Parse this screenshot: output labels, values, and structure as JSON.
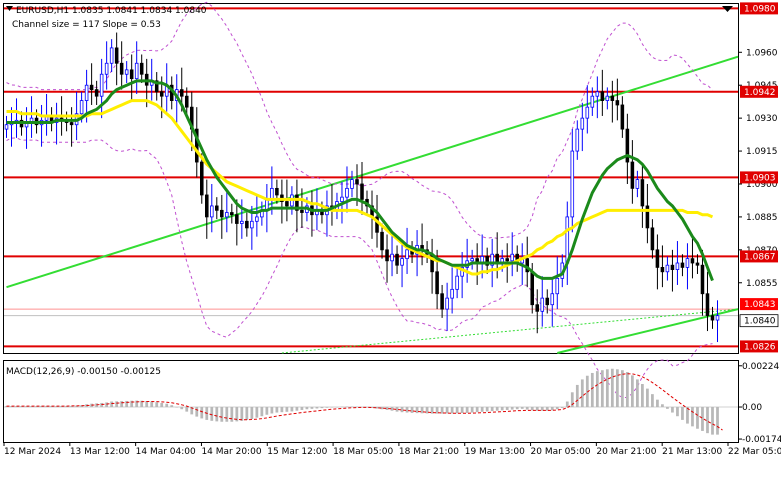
{
  "header": {
    "title": "EURUSD,H1  1.0835 1.0841 1.0834 1.0840",
    "subtitle": "Channel size = 117 Slope = 0.53"
  },
  "macd": {
    "label": "MACD(12,26,9) -0.00150 -0.00125",
    "ticks": [
      {
        "value": 0.00224,
        "label": "0.00224"
      },
      {
        "value": 0.0,
        "label": "0.00"
      },
      {
        "value": -0.00174,
        "label": "-0.00174"
      }
    ],
    "ylim": [
      -0.0019,
      0.0025
    ]
  },
  "colors": {
    "up": "#0000ff",
    "down": "#000000",
    "level": "#e00000",
    "ema_fast": "#1b8a1b",
    "ema_slow": "#ffee00",
    "channel": "#33dd33",
    "bands": "#c050d0",
    "price_tag": "#ff0000"
  },
  "chart_data": {
    "type": "candlestick",
    "symbol": "EURUSD",
    "timeframe": "H1",
    "ylim": [
      1.0823,
      1.0982
    ],
    "x_tick_labels": [
      "12 Mar 2024",
      "13 Mar 12:00",
      "14 Mar 04:00",
      "14 Mar 20:00",
      "15 Mar 12:00",
      "18 Mar 05:00",
      "18 Mar 21:00",
      "19 Mar 13:00",
      "20 Mar 05:00",
      "20 Mar 21:00",
      "21 Mar 13:00",
      "22 Mar 05:00"
    ],
    "y_ticks": [
      {
        "value": 1.096,
        "label": "1.0960"
      },
      {
        "value": 1.0945,
        "label": "1.0945"
      },
      {
        "value": 1.093,
        "label": "1.0930"
      },
      {
        "value": 1.0915,
        "label": "1.0915"
      },
      {
        "value": 1.09,
        "label": "1.0900"
      },
      {
        "value": 1.0885,
        "label": "1.0885"
      },
      {
        "value": 1.087,
        "label": "1.0870"
      },
      {
        "value": 1.0855,
        "label": "1.0855"
      }
    ],
    "levels": [
      {
        "value": 1.098,
        "label": "1.0980"
      },
      {
        "value": 1.0942,
        "label": "1.0942"
      },
      {
        "value": 1.0903,
        "label": "1.0903"
      },
      {
        "value": 1.0867,
        "label": "1.0867"
      },
      {
        "value": 1.0826,
        "label": "1.0826"
      }
    ],
    "price_tags": [
      {
        "value": 1.0843,
        "label": "1.0843"
      },
      {
        "value": 1.084,
        "label": "1.0840"
      }
    ],
    "close": [
      1.0927,
      1.0928,
      1.0929,
      1.0926,
      1.0928,
      1.093,
      1.0927,
      1.0929,
      1.0931,
      1.0928,
      1.093,
      1.0929,
      1.0928,
      1.0927,
      1.0932,
      1.0938,
      1.0945,
      1.0943,
      1.094,
      1.095,
      1.0955,
      1.0962,
      1.0955,
      1.095,
      1.0952,
      1.0948,
      1.0955,
      1.095,
      1.0945,
      1.0947,
      1.0942,
      1.094,
      1.0945,
      1.0938,
      1.0943,
      1.094,
      1.0935,
      1.0925,
      1.091,
      1.0895,
      1.0885,
      1.089,
      1.0888,
      1.0885,
      1.0887,
      1.0886,
      1.0882,
      1.0883,
      1.088,
      1.0883,
      1.0885,
      1.0888,
      1.0893,
      1.0898,
      1.0895,
      1.0892,
      1.089,
      1.0895,
      1.0888,
      1.0887,
      1.089,
      1.0886,
      1.0888,
      1.0886,
      1.089,
      1.0888,
      1.0892,
      1.0894,
      1.0898,
      1.0902,
      1.09,
      1.0893,
      1.089,
      1.0885,
      1.0878,
      1.087,
      1.0865,
      1.0868,
      1.0863,
      1.0866,
      1.087,
      1.0868,
      1.0872,
      1.087,
      1.0868,
      1.086,
      1.085,
      1.0843,
      1.0848,
      1.0852,
      1.0858,
      1.0862,
      1.0865,
      1.0866,
      1.0864,
      1.0867,
      1.0863,
      1.0868,
      1.0864,
      1.0866,
      1.0865,
      1.0868,
      1.0864,
      1.0866,
      1.086,
      1.0845,
      1.0842,
      1.0848,
      1.0845,
      1.085,
      1.0857,
      1.0864,
      1.0885,
      1.0915,
      1.0925,
      1.093,
      1.0935,
      1.094,
      1.0942,
      1.0938,
      1.094,
      1.0938,
      1.0936,
      1.0925,
      1.091,
      1.0898,
      1.0902,
      1.089,
      1.088,
      1.087,
      1.0862,
      1.086,
      1.0863,
      1.0861,
      1.0864,
      1.0862,
      1.0866,
      1.0864,
      1.0863,
      1.085,
      1.084,
      1.0838,
      1.084
    ],
    "ema_fast": [
      1.0928,
      1.0928,
      1.0928,
      1.0928,
      1.0928,
      1.0928,
      1.0928,
      1.0928,
      1.0928,
      1.0928,
      1.0929,
      1.0929,
      1.0929,
      1.0929,
      1.0929,
      1.093,
      1.0932,
      1.0933,
      1.0934,
      1.0936,
      1.0938,
      1.0941,
      1.0943,
      1.0944,
      1.0945,
      1.0946,
      1.0947,
      1.0947,
      1.0947,
      1.0947,
      1.0946,
      1.0946,
      1.0945,
      1.0943,
      1.094,
      1.0936,
      1.0931,
      1.0926,
      1.0921,
      1.0916,
      1.0911,
      1.0907,
      1.0903,
      1.09,
      1.0897,
      1.0894,
      1.0891,
      1.0889,
      1.0888,
      1.0887,
      1.0887,
      1.0888,
      1.0888,
      1.0889,
      1.0889,
      1.0889,
      1.0889,
      1.0889,
      1.0889,
      1.0889,
      1.0889,
      1.0888,
      1.0888,
      1.0888,
      1.0888,
      1.0889,
      1.089,
      1.0891,
      1.0892,
      1.0893,
      1.0893,
      1.0892,
      1.0891,
      1.0889,
      1.0887,
      1.0884,
      1.0881,
      1.0878,
      1.0876,
      1.0874,
      1.0872,
      1.0871,
      1.087,
      1.087,
      1.0869,
      1.0868,
      1.0866,
      1.0865,
      1.0864,
      1.0863,
      1.0863,
      1.0863,
      1.0863,
      1.0864,
      1.0864,
      1.0864,
      1.0864,
      1.0864,
      1.0864,
      1.0864,
      1.0864,
      1.0864,
      1.0864,
      1.0863,
      1.0862,
      1.086,
      1.0858,
      1.0857,
      1.0857,
      1.0857,
      1.0858,
      1.0859,
      1.0864,
      1.087,
      1.0877,
      1.0884,
      1.089,
      1.0896,
      1.09,
      1.0904,
      1.0907,
      1.0909,
      1.0911,
      1.0912,
      1.0913,
      1.0912,
      1.0911,
      1.0909,
      1.0906,
      1.0902,
      1.0898,
      1.0895,
      1.0892,
      1.089,
      1.0887,
      1.0884,
      1.088,
      1.0876,
      1.0873,
      1.0868,
      1.0862,
      1.0856
    ],
    "ema_slow": [
      1.0933,
      1.0933,
      1.0933,
      1.0932,
      1.0932,
      1.0932,
      1.0932,
      1.0931,
      1.0931,
      1.0931,
      1.0931,
      1.0931,
      1.0931,
      1.0931,
      1.0931,
      1.0931,
      1.0931,
      1.0932,
      1.0932,
      1.0932,
      1.0933,
      1.0934,
      1.0935,
      1.0936,
      1.0937,
      1.0938,
      1.0938,
      1.0938,
      1.0938,
      1.0937,
      1.0936,
      1.0934,
      1.0932,
      1.093,
      1.0927,
      1.0924,
      1.0921,
      1.0918,
      1.0915,
      1.0912,
      1.0909,
      1.0907,
      1.0905,
      1.0903,
      1.0901,
      1.09,
      1.0899,
      1.0898,
      1.0897,
      1.0896,
      1.0895,
      1.0894,
      1.0893,
      1.0893,
      1.0893,
      1.0893,
      1.0893,
      1.0893,
      1.0893,
      1.0893,
      1.0892,
      1.0891,
      1.0891,
      1.089,
      1.0889,
      1.0888,
      1.0888,
      1.0888,
      1.0888,
      1.0888,
      1.0888,
      1.0887,
      1.0886,
      1.0885,
      1.0883,
      1.0881,
      1.0879,
      1.0877,
      1.0875,
      1.0873,
      1.0871,
      1.087,
      1.0869,
      1.0868,
      1.0867,
      1.0866,
      1.0865,
      1.0865,
      1.0864,
      1.0863,
      1.0862,
      1.0861,
      1.086,
      1.0859,
      1.0859,
      1.086,
      1.086,
      1.0861,
      1.0861,
      1.0862,
      1.0863,
      1.0864,
      1.0865,
      1.0866,
      1.0867,
      1.0868,
      1.087,
      1.0871,
      1.0873,
      1.0874,
      1.0876,
      1.0877,
      1.0879,
      1.088,
      1.0882,
      1.0883,
      1.0884,
      1.0885,
      1.0886,
      1.0887,
      1.0888,
      1.0888,
      1.0888,
      1.0888,
      1.0888,
      1.0888,
      1.0888,
      1.0888,
      1.0888,
      1.0888,
      1.0888,
      1.0888,
      1.0888,
      1.0888,
      1.0888,
      1.0888,
      1.0887,
      1.0887,
      1.0887,
      1.0886,
      1.0886,
      1.0885
    ],
    "macd_hist": [
      5e-05,
      5e-05,
      5e-05,
      5e-05,
      5e-05,
      5e-05,
      5e-05,
      6e-05,
      6e-05,
      6e-05,
      5e-05,
      6e-05,
      6e-05,
      6e-05,
      8e-05,
      0.0001,
      0.00015,
      0.00018,
      0.0002,
      0.00022,
      0.00025,
      0.0003,
      0.00031,
      0.00032,
      0.00033,
      0.00034,
      0.00035,
      0.00034,
      0.00032,
      0.0003,
      0.00026,
      0.00022,
      0.00018,
      0.0001,
      0.0,
      -0.00012,
      -0.00025,
      -0.0004,
      -0.00052,
      -0.00062,
      -0.0007,
      -0.00075,
      -0.00078,
      -0.0008,
      -0.0008,
      -0.0008,
      -0.00078,
      -0.00075,
      -0.0007,
      -0.00065,
      -0.00058,
      -0.0005,
      -0.00042,
      -0.00035,
      -0.0003,
      -0.00028,
      -0.00026,
      -0.00024,
      -0.0002,
      -0.00016,
      -0.00012,
      -0.0001,
      -8e-05,
      -6e-05,
      -4e-05,
      -2e-05,
      0.0,
      2e-05,
      3e-05,
      3e-05,
      2e-05,
      0.0,
      -2e-05,
      -5e-05,
      -8e-05,
      -0.00012,
      -0.00016,
      -0.0002,
      -0.00025,
      -0.00028,
      -0.0003,
      -0.00032,
      -0.00033,
      -0.00034,
      -0.00035,
      -0.00036,
      -0.00036,
      -0.00036,
      -0.00035,
      -0.00035,
      -0.00034,
      -0.00033,
      -0.00032,
      -0.0003,
      -0.00028,
      -0.00026,
      -0.00024,
      -0.00022,
      -0.0002,
      -0.00018,
      -0.00016,
      -0.00014,
      -0.00012,
      -0.0001,
      -0.00014,
      -0.00018,
      -0.0002,
      -0.0002,
      -0.0002,
      -0.00018,
      -0.00012,
      -5e-05,
      0.0003,
      0.0008,
      0.0012,
      0.0015,
      0.0017,
      0.00185,
      0.00195,
      0.002,
      0.00205,
      0.00208,
      0.00205,
      0.002,
      0.0019,
      0.00172,
      0.0015,
      0.00125,
      0.001,
      0.0007,
      0.0004,
      0.00015,
      -0.0001,
      -0.0003,
      -0.0005,
      -0.0007,
      -0.0009,
      -0.00105,
      -0.00118,
      -0.0013,
      -0.00142,
      -0.0015,
      -0.0015
    ],
    "macd_signal": [
      5e-05,
      5e-05,
      5e-05,
      5e-05,
      5e-05,
      5e-05,
      5e-05,
      5e-05,
      5e-05,
      5e-05,
      5e-05,
      5e-05,
      5e-05,
      6e-05,
      6e-05,
      7e-05,
      8e-05,
      0.0001,
      0.00012,
      0.00014,
      0.00016,
      0.00019,
      0.00021,
      0.00023,
      0.00025,
      0.00027,
      0.00028,
      0.00029,
      0.0003,
      0.0003,
      0.00029,
      0.00028,
      0.00026,
      0.00023,
      0.00018,
      0.00012,
      5e-05,
      -5e-05,
      -0.00015,
      -0.00025,
      -0.00034,
      -0.00042,
      -0.00049,
      -0.00055,
      -0.0006,
      -0.00064,
      -0.00067,
      -0.00069,
      -0.00069,
      -0.00068,
      -0.00066,
      -0.00063,
      -0.00059,
      -0.00054,
      -0.00049,
      -0.00045,
      -0.00041,
      -0.00037,
      -0.00034,
      -0.0003,
      -0.00027,
      -0.00024,
      -0.00021,
      -0.00018,
      -0.00015,
      -0.00012,
      -0.0001,
      -8e-05,
      -6e-05,
      -4e-05,
      -3e-05,
      -2e-05,
      -2e-05,
      -3e-05,
      -4e-05,
      -6e-05,
      -8e-05,
      -0.0001,
      -0.00013,
      -0.00016,
      -0.00019,
      -0.00021,
      -0.00024,
      -0.00026,
      -0.00028,
      -0.0003,
      -0.00031,
      -0.00032,
      -0.00033,
      -0.00034,
      -0.00034,
      -0.00034,
      -0.00034,
      -0.00033,
      -0.00032,
      -0.00031,
      -0.0003,
      -0.00028,
      -0.00027,
      -0.00025,
      -0.00024,
      -0.00022,
      -0.0002,
      -0.00019,
      -0.00018,
      -0.00018,
      -0.00018,
      -0.00018,
      -0.00018,
      -0.00018,
      -0.00016,
      -0.00013,
      -4e-05,
      0.00014,
      0.00036,
      0.00059,
      0.00081,
      0.00102,
      0.00121,
      0.00137,
      0.00151,
      0.00163,
      0.00172,
      0.00178,
      0.00181,
      0.0018,
      0.00174,
      0.00164,
      0.0015,
      0.00133,
      0.00114,
      0.00094,
      0.00073,
      0.00052,
      0.00032,
      0.00012,
      -7e-05,
      -0.00026,
      -0.00044,
      -0.00061,
      -0.00077,
      -0.00092,
      -0.00106,
      -0.00125
    ]
  }
}
